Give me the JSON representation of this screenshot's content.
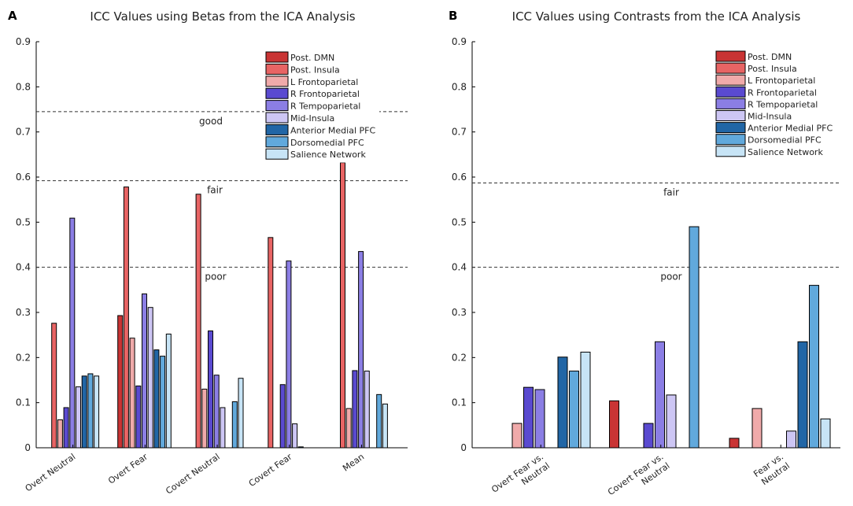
{
  "chart_data": [
    {
      "type": "bar",
      "panel_label": "A",
      "title": "ICC Values using Betas from the ICA Analysis",
      "xlabel": "",
      "ylabel": "",
      "ylim": [
        0,
        0.9
      ],
      "yticks": [
        "0",
        "0.1",
        "0.2",
        "0.3",
        "0.4",
        "0.5",
        "0.6",
        "0.7",
        "0.8",
        "0.9"
      ],
      "categories": [
        "Overt Neutral",
        "Overt Fear",
        "Covert Neutral",
        "Covert Fear",
        "Mean"
      ],
      "series": [
        {
          "name": "Post. DMN",
          "color": "#c93434",
          "values": [
            0,
            0.293,
            0,
            0,
            0
          ]
        },
        {
          "name": "Post. Insula",
          "color": "#e86464",
          "values": [
            0.276,
            0.578,
            0.562,
            0.466,
            0.632
          ]
        },
        {
          "name": "L Frontoparietal",
          "color": "#f0aaaa",
          "values": [
            0.062,
            0.243,
            0.13,
            0,
            0.087
          ]
        },
        {
          "name": "R Frontoparietal",
          "color": "#5a4ad0",
          "values": [
            0.089,
            0.137,
            0.259,
            0.14,
            0.171
          ]
        },
        {
          "name": "R Tempoparietal",
          "color": "#8b7ee4",
          "values": [
            0.509,
            0.341,
            0.161,
            0.414,
            0.435
          ]
        },
        {
          "name": "Mid-Insula",
          "color": "#cdc6f4",
          "values": [
            0.135,
            0.311,
            0.089,
            0.053,
            0.17
          ]
        },
        {
          "name": "Anterior Medial PFC",
          "color": "#2166a6",
          "values": [
            0.159,
            0.217,
            0,
            0.002,
            0
          ]
        },
        {
          "name": "Dorsomedial PFC",
          "color": "#61a9dc",
          "values": [
            0.164,
            0.203,
            0.102,
            0,
            0.118
          ]
        },
        {
          "name": "Salience Network",
          "color": "#c7e4f6",
          "values": [
            0.159,
            0.252,
            0.154,
            0,
            0.097
          ]
        }
      ],
      "thresholds": [
        {
          "value": 0.745,
          "label": "good"
        },
        {
          "value": 0.592,
          "label": "fair"
        },
        {
          "value": 0.4,
          "label": "poor"
        }
      ],
      "legend_position": "top-right"
    },
    {
      "type": "bar",
      "panel_label": "B",
      "title": "ICC Values using Contrasts from the ICA Analysis",
      "xlabel": "",
      "ylabel": "",
      "ylim": [
        0,
        0.9
      ],
      "yticks": [
        "0",
        "0.1",
        "0.2",
        "0.3",
        "0.4",
        "0.5",
        "0.6",
        "0.7",
        "0.8",
        "0.9"
      ],
      "categories": [
        "Overt Fear vs. Neutral",
        "Covert Fear vs. Neutral",
        "Fear vs. Neutral"
      ],
      "series": [
        {
          "name": "Post. DMN",
          "color": "#c93434",
          "values": [
            0,
            0.104,
            0.021
          ]
        },
        {
          "name": "Post. Insula",
          "color": "#e86464",
          "values": [
            0,
            0,
            0
          ]
        },
        {
          "name": "L Frontoparietal",
          "color": "#f0aaaa",
          "values": [
            0.054,
            0,
            0.087
          ]
        },
        {
          "name": "R Frontoparietal",
          "color": "#5a4ad0",
          "values": [
            0.134,
            0.054,
            0
          ]
        },
        {
          "name": "R Tempoparietal",
          "color": "#8b7ee4",
          "values": [
            0.129,
            0.235,
            0
          ]
        },
        {
          "name": "Mid-Insula",
          "color": "#cdc6f4",
          "values": [
            0,
            0.117,
            0.037
          ]
        },
        {
          "name": "Anterior Medial PFC",
          "color": "#2166a6",
          "values": [
            0.201,
            0,
            0.235
          ]
        },
        {
          "name": "Dorsomedial PFC",
          "color": "#61a9dc",
          "values": [
            0.17,
            0.49,
            0.36
          ]
        },
        {
          "name": "Salience Network",
          "color": "#c7e4f6",
          "values": [
            0.212,
            0,
            0.064
          ]
        }
      ],
      "thresholds": [
        {
          "value": 0.587,
          "label": "fair"
        },
        {
          "value": 0.4,
          "label": "poor"
        }
      ],
      "legend_position": "top-right"
    }
  ]
}
